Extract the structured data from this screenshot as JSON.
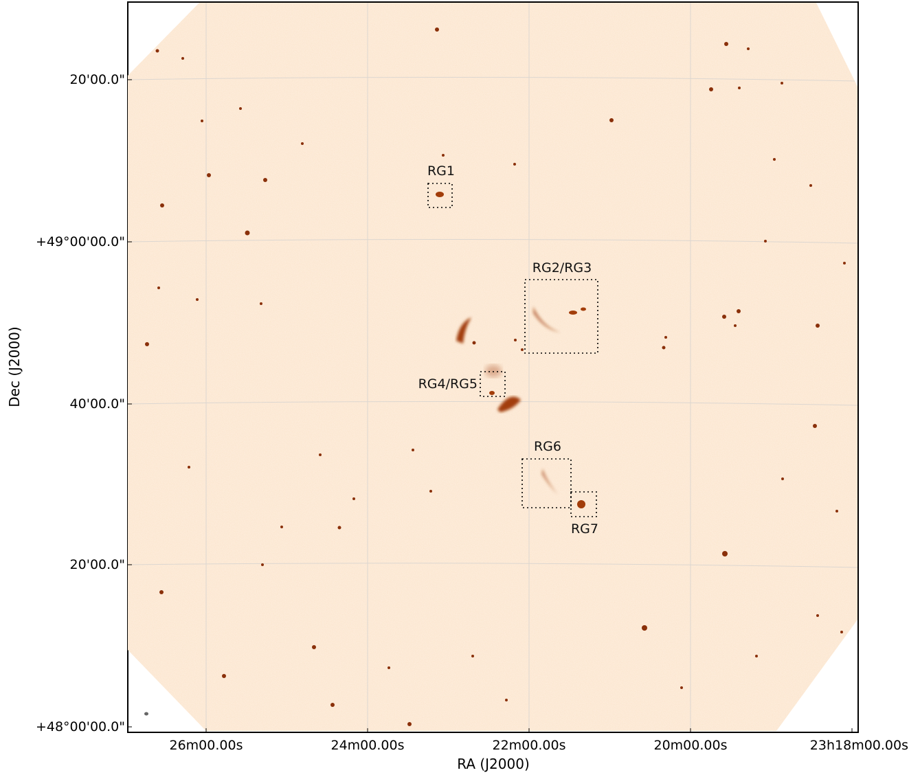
{
  "axes": {
    "xlabel": "RA (J2000)",
    "ylabel": "Dec (J2000)",
    "x_ticks": [
      "26m00.00s",
      "24m00.00s",
      "22m00.00s",
      "20m00.00s",
      "23h18m00.00s"
    ],
    "y_ticks": [
      "20'00.0\"",
      "+49°00'00.0\"",
      "40'00.0\"",
      "20'00.0\"",
      "+48°00'00.0\""
    ]
  },
  "regions": [
    "RG1",
    "RG2/RG3",
    "RG4/RG5",
    "RG6",
    "RG7"
  ],
  "colors": {
    "background_map": "#fdebd9",
    "source": "#a23d0a",
    "grid": "#cfcfcf",
    "box": "#000000"
  }
}
